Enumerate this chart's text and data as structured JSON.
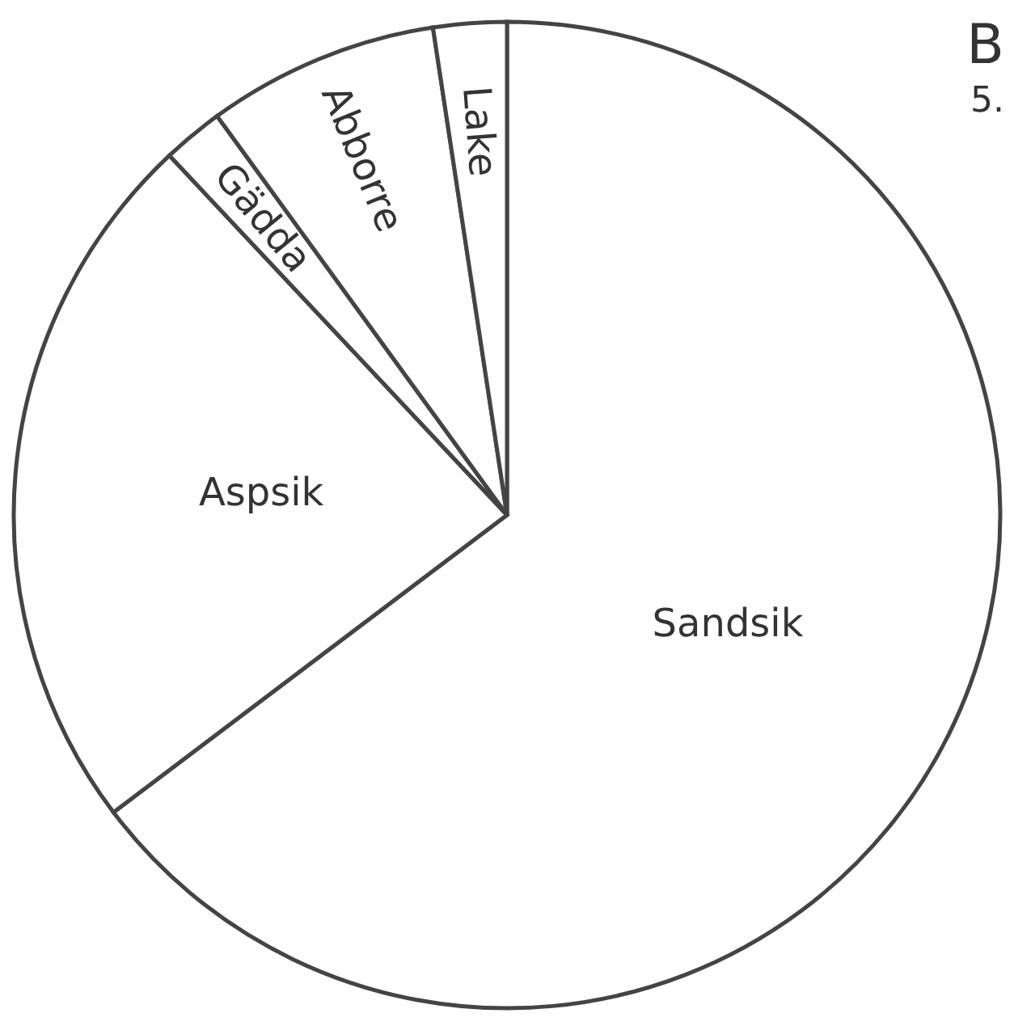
{
  "chart_data": {
    "type": "pie",
    "categories": [
      "Sandsik",
      "Aspsik",
      "Gädda",
      "Abborre",
      "Lake"
    ],
    "values": [
      64.7,
      23.3,
      2.0,
      7.6,
      2.4
    ],
    "colors": [
      "#ffffff",
      "#ffffff",
      "#ffffff",
      "#ffffff",
      "#ffffff"
    ],
    "annotations": [
      "B",
      "5."
    ]
  }
}
